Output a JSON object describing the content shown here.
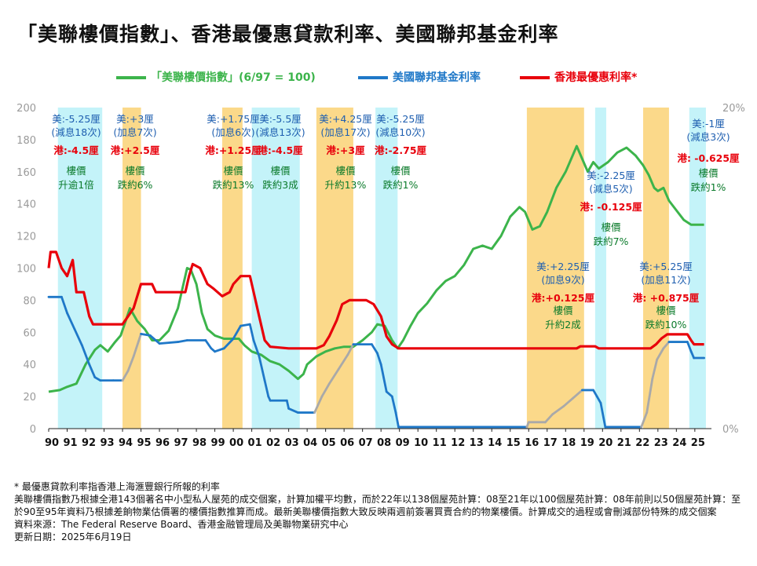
{
  "title": "「美聯樓價指數」、香港最優惠貸款利率、美國聯邦基金利率",
  "legend": [
    {
      "key": "cc",
      "label": "「美聯樓價指數」(6/97 = 100)",
      "color": "#3cb44b"
    },
    {
      "key": "fed",
      "label": "美國聯邦基金利率",
      "color": "#1f78c8"
    },
    {
      "key": "prime",
      "label": "香港最優惠利率*",
      "color": "#e8000b"
    }
  ],
  "colors": {
    "cut_band": "#c4f3f9",
    "hike_band": "#fbd98a",
    "us_text": "#1f5fb0",
    "hk_text": "#e8000b",
    "price_text": "#0a7a2a",
    "fed_hike_line": "#a9a9a9"
  },
  "chart_data": {
    "type": "line",
    "x_range": [
      1990,
      2025.9
    ],
    "xticks": [
      "90",
      "91",
      "92",
      "93",
      "94",
      "95",
      "96",
      "97",
      "98",
      "99",
      "00",
      "01",
      "02",
      "03",
      "04",
      "05",
      "06",
      "07",
      "08",
      "09",
      "10",
      "11",
      "12",
      "13",
      "14",
      "15",
      "16",
      "17",
      "18",
      "19",
      "20",
      "21",
      "22",
      "23",
      "24",
      "25"
    ],
    "left_axis": {
      "range": [
        0,
        200
      ],
      "ticks": [
        "0",
        "20",
        "40",
        "60",
        "80",
        "100",
        "120",
        "140",
        "160",
        "180",
        "200"
      ]
    },
    "right_axis": {
      "range": [
        0,
        20
      ],
      "ticks": [
        "0%",
        "20%"
      ]
    },
    "grid": false,
    "legend_position": "top",
    "bands": [
      {
        "type": "cut",
        "from": 1990.5,
        "to": 1992.9
      },
      {
        "type": "hike",
        "from": 1994.0,
        "to": 1995.0
      },
      {
        "type": "hike",
        "from": 1999.4,
        "to": 2000.5
      },
      {
        "type": "cut",
        "from": 2001.0,
        "to": 2003.6
      },
      {
        "type": "hike",
        "from": 2004.5,
        "to": 2006.5
      },
      {
        "type": "cut",
        "from": 2007.7,
        "to": 2008.9
      },
      {
        "type": "hike",
        "from": 2015.9,
        "to": 2019.0
      },
      {
        "type": "cut",
        "from": 2019.6,
        "to": 2020.2
      },
      {
        "type": "hike",
        "from": 2022.2,
        "to": 2023.6
      },
      {
        "type": "cut",
        "from": 2024.7,
        "to": 2025.6
      }
    ],
    "series": [
      {
        "name": "「美聯樓價指數」(6/97 = 100)",
        "axis": "left",
        "points": [
          [
            1990,
            23
          ],
          [
            1990.6,
            24
          ],
          [
            1991,
            26
          ],
          [
            1991.5,
            28
          ],
          [
            1992,
            40
          ],
          [
            1992.5,
            49
          ],
          [
            1992.8,
            52
          ],
          [
            1993.2,
            48
          ],
          [
            1993.6,
            54
          ],
          [
            1993.9,
            58
          ],
          [
            1994.2,
            68
          ],
          [
            1994.4,
            75
          ],
          [
            1994.8,
            67
          ],
          [
            1995.2,
            62
          ],
          [
            1995.6,
            55
          ],
          [
            1996,
            55
          ],
          [
            1996.5,
            61
          ],
          [
            1997,
            75
          ],
          [
            1997.3,
            90
          ],
          [
            1997.5,
            100
          ],
          [
            1997.7,
            99
          ],
          [
            1998,
            90
          ],
          [
            1998.3,
            72
          ],
          [
            1998.6,
            62
          ],
          [
            1999,
            58
          ],
          [
            1999.5,
            56
          ],
          [
            2000,
            56
          ],
          [
            2000.3,
            56
          ],
          [
            2000.6,
            52
          ],
          [
            2001,
            48
          ],
          [
            2001.5,
            46
          ],
          [
            2002,
            42
          ],
          [
            2002.5,
            40
          ],
          [
            2003,
            36
          ],
          [
            2003.5,
            31
          ],
          [
            2003.8,
            34
          ],
          [
            2004,
            40
          ],
          [
            2004.5,
            45
          ],
          [
            2005,
            48
          ],
          [
            2005.5,
            50
          ],
          [
            2006,
            51
          ],
          [
            2006.5,
            51
          ],
          [
            2007,
            55
          ],
          [
            2007.5,
            60
          ],
          [
            2007.8,
            65
          ],
          [
            2008.2,
            64
          ],
          [
            2008.6,
            55
          ],
          [
            2008.9,
            50
          ],
          [
            2009.2,
            55
          ],
          [
            2009.6,
            64
          ],
          [
            2010,
            72
          ],
          [
            2010.5,
            78
          ],
          [
            2011,
            86
          ],
          [
            2011.5,
            92
          ],
          [
            2012,
            95
          ],
          [
            2012.5,
            102
          ],
          [
            2013,
            112
          ],
          [
            2013.5,
            114
          ],
          [
            2014,
            112
          ],
          [
            2014.5,
            120
          ],
          [
            2015,
            132
          ],
          [
            2015.5,
            138
          ],
          [
            2015.8,
            135
          ],
          [
            2016.2,
            124
          ],
          [
            2016.6,
            126
          ],
          [
            2017,
            135
          ],
          [
            2017.5,
            150
          ],
          [
            2018,
            160
          ],
          [
            2018.6,
            176
          ],
          [
            2018.9,
            168
          ],
          [
            2019.2,
            160
          ],
          [
            2019.5,
            166
          ],
          [
            2019.8,
            162
          ],
          [
            2020.3,
            166
          ],
          [
            2020.8,
            172
          ],
          [
            2021.3,
            175
          ],
          [
            2021.8,
            170
          ],
          [
            2022.2,
            164
          ],
          [
            2022.5,
            158
          ],
          [
            2022.8,
            150
          ],
          [
            2023,
            148
          ],
          [
            2023.3,
            150
          ],
          [
            2023.6,
            142
          ],
          [
            2024,
            136
          ],
          [
            2024.4,
            130
          ],
          [
            2024.8,
            127
          ],
          [
            2025.5,
            127
          ]
        ]
      },
      {
        "name": "美國聯邦基金利率",
        "axis": "right",
        "points": [
          [
            1990,
            8.2
          ],
          [
            1990.7,
            8.2
          ],
          [
            1991,
            7.2
          ],
          [
            1991.4,
            6.2
          ],
          [
            1991.8,
            5.2
          ],
          [
            1992.2,
            4.0
          ],
          [
            1992.5,
            3.2
          ],
          [
            1992.8,
            3.0
          ],
          [
            1993.5,
            3.0
          ],
          [
            1994,
            3.0
          ],
          [
            1994.3,
            3.6
          ],
          [
            1994.6,
            4.5
          ],
          [
            1995,
            5.9
          ],
          [
            1995.5,
            5.8
          ],
          [
            1996,
            5.3
          ],
          [
            1997,
            5.4
          ],
          [
            1997.5,
            5.5
          ],
          [
            1998.5,
            5.5
          ],
          [
            1998.8,
            5.0
          ],
          [
            1999,
            4.8
          ],
          [
            1999.5,
            5.0
          ],
          [
            2000,
            5.6
          ],
          [
            2000.4,
            6.4
          ],
          [
            2000.9,
            6.5
          ],
          [
            2001.1,
            5.5
          ],
          [
            2001.4,
            4.5
          ],
          [
            2001.7,
            3.0
          ],
          [
            2001.9,
            2.0
          ],
          [
            2002,
            1.75
          ],
          [
            2002.9,
            1.75
          ],
          [
            2003,
            1.25
          ],
          [
            2003.5,
            1.0
          ],
          [
            2004.4,
            1.0
          ],
          [
            2004.8,
            2.0
          ],
          [
            2005.2,
            2.8
          ],
          [
            2005.7,
            3.7
          ],
          [
            2006.2,
            4.6
          ],
          [
            2006.5,
            5.25
          ],
          [
            2007.5,
            5.25
          ],
          [
            2007.8,
            4.7
          ],
          [
            2008,
            4.0
          ],
          [
            2008.3,
            2.3
          ],
          [
            2008.6,
            2.0
          ],
          [
            2008.8,
            1.0
          ],
          [
            2008.95,
            0.1
          ],
          [
            2015.9,
            0.1
          ],
          [
            2016,
            0.4
          ],
          [
            2016.9,
            0.4
          ],
          [
            2017.3,
            0.9
          ],
          [
            2017.9,
            1.4
          ],
          [
            2018.4,
            1.9
          ],
          [
            2018.9,
            2.4
          ],
          [
            2019.5,
            2.4
          ],
          [
            2019.7,
            2.0
          ],
          [
            2019.9,
            1.6
          ],
          [
            2020.15,
            0.1
          ],
          [
            2022.1,
            0.1
          ],
          [
            2022.4,
            1.0
          ],
          [
            2022.7,
            3.1
          ],
          [
            2022.95,
            4.3
          ],
          [
            2023.3,
            5.0
          ],
          [
            2023.6,
            5.4
          ],
          [
            2024.6,
            5.4
          ],
          [
            2024.8,
            4.8
          ],
          [
            2024.95,
            4.4
          ],
          [
            2025.5,
            4.4
          ]
        ]
      },
      {
        "name": "香港最優惠利率*",
        "axis": "right",
        "points": [
          [
            1990,
            10.0
          ],
          [
            1990.1,
            11.0
          ],
          [
            1990.4,
            11.0
          ],
          [
            1990.7,
            10.0
          ],
          [
            1991,
            9.5
          ],
          [
            1991.3,
            10.5
          ],
          [
            1991.5,
            8.5
          ],
          [
            1991.9,
            8.5
          ],
          [
            1992.2,
            7.0
          ],
          [
            1992.4,
            6.5
          ],
          [
            1993,
            6.5
          ],
          [
            1994,
            6.5
          ],
          [
            1994.3,
            7.0
          ],
          [
            1994.6,
            7.5
          ],
          [
            1995,
            9.0
          ],
          [
            1995.6,
            9.0
          ],
          [
            1995.8,
            8.5
          ],
          [
            1997.4,
            8.5
          ],
          [
            1997.6,
            9.5
          ],
          [
            1997.8,
            10.25
          ],
          [
            1998.2,
            10.0
          ],
          [
            1998.6,
            9.0
          ],
          [
            1998.9,
            8.75
          ],
          [
            1999.4,
            8.25
          ],
          [
            1999.8,
            8.5
          ],
          [
            2000,
            9.0
          ],
          [
            2000.4,
            9.5
          ],
          [
            2000.9,
            9.5
          ],
          [
            2001.1,
            8.5
          ],
          [
            2001.4,
            7.0
          ],
          [
            2001.7,
            5.5
          ],
          [
            2002,
            5.1
          ],
          [
            2003,
            5.0
          ],
          [
            2004.5,
            5.0
          ],
          [
            2004.9,
            5.2
          ],
          [
            2005.2,
            5.75
          ],
          [
            2005.6,
            6.75
          ],
          [
            2005.9,
            7.75
          ],
          [
            2006.3,
            8.0
          ],
          [
            2007.2,
            8.0
          ],
          [
            2007.6,
            7.75
          ],
          [
            2008,
            7.0
          ],
          [
            2008.3,
            5.75
          ],
          [
            2008.6,
            5.25
          ],
          [
            2008.95,
            5.0
          ],
          [
            2018.6,
            5.0
          ],
          [
            2018.8,
            5.125
          ],
          [
            2019.6,
            5.125
          ],
          [
            2019.8,
            5.0
          ],
          [
            2022.6,
            5.0
          ],
          [
            2022.9,
            5.25
          ],
          [
            2023.2,
            5.625
          ],
          [
            2023.5,
            5.875
          ],
          [
            2024.6,
            5.875
          ],
          [
            2024.8,
            5.5
          ],
          [
            2024.95,
            5.25
          ],
          [
            2025.5,
            5.25
          ]
        ]
      }
    ]
  },
  "annotations": [
    {
      "id": "a1",
      "us": [
        "美:-5.25厘",
        "(減息18次)"
      ],
      "hk": "港:-4.5厘",
      "price": [
        "樓價",
        "升逾1倍"
      ]
    },
    {
      "id": "a2",
      "us": [
        "美:+3厘",
        "(加息7次)"
      ],
      "hk": "港:+2.5厘",
      "price": [
        "樓價",
        "跌約6%"
      ]
    },
    {
      "id": "a3",
      "us": [
        "美:+1.75厘",
        "(加息6次)"
      ],
      "hk": "港:+1.25厘",
      "price": [
        "樓價",
        "跌約13%"
      ]
    },
    {
      "id": "a4",
      "us": [
        "美:-5.5厘",
        "(減息13次)"
      ],
      "hk": "港:-4.5厘",
      "price": [
        "樓價",
        "跌約3成"
      ]
    },
    {
      "id": "a5",
      "us": [
        "美:+4.25厘",
        "(加息17次)"
      ],
      "hk": "港:+3厘",
      "price": [
        "樓價",
        "升約13%"
      ]
    },
    {
      "id": "a6",
      "us": [
        "美:-5.25厘",
        "(減息10次)"
      ],
      "hk": "港:-2.75厘",
      "price": [
        "樓價",
        "跌約1%"
      ]
    },
    {
      "id": "a7",
      "us": [
        "美:-2.25厘",
        "(減息5次)"
      ],
      "hk": "港: -0.125厘",
      "price": [
        "樓價",
        "跌約7%"
      ]
    },
    {
      "id": "a8",
      "us": [
        "美:+2.25厘",
        "(加息9次)"
      ],
      "hk": "港:+0.125厘",
      "price": [
        "樓價",
        "升約2成"
      ]
    },
    {
      "id": "a9",
      "us": [
        "美:+5.25厘",
        "(加息11次)"
      ],
      "hk": "港: +0.875厘",
      "price": [
        "樓價",
        "跌約10%"
      ]
    },
    {
      "id": "a10",
      "us": [
        "美:-1厘",
        "(減息3次)"
      ],
      "hk": "港: -0.625厘",
      "price": [
        "樓價",
        "跌約1%"
      ]
    }
  ],
  "footnotes": [
    "* 最優惠貸款利率指香港上海滙豐銀行所報的利率",
    "美聯樓價指數乃根據全港143個著名中小型私人屋苑的成交個案，計算加權平均數，而於22年以138個屋苑計算：08至21年以100個屋苑計算：08年前則以50個屋苑計算：至於90至95年資料乃根據差餉物業估價署的樓價指數推算而成。最新美聯樓價指數大致反映兩週前簽署買賣合約的物業樓價。計算成交的過程或會刪減部份特殊的成交個案",
    "資料來源：The Federal Reserve Board、香港金融管理局及美聯物業研究中心",
    "更新日期：2025年6月19日"
  ]
}
